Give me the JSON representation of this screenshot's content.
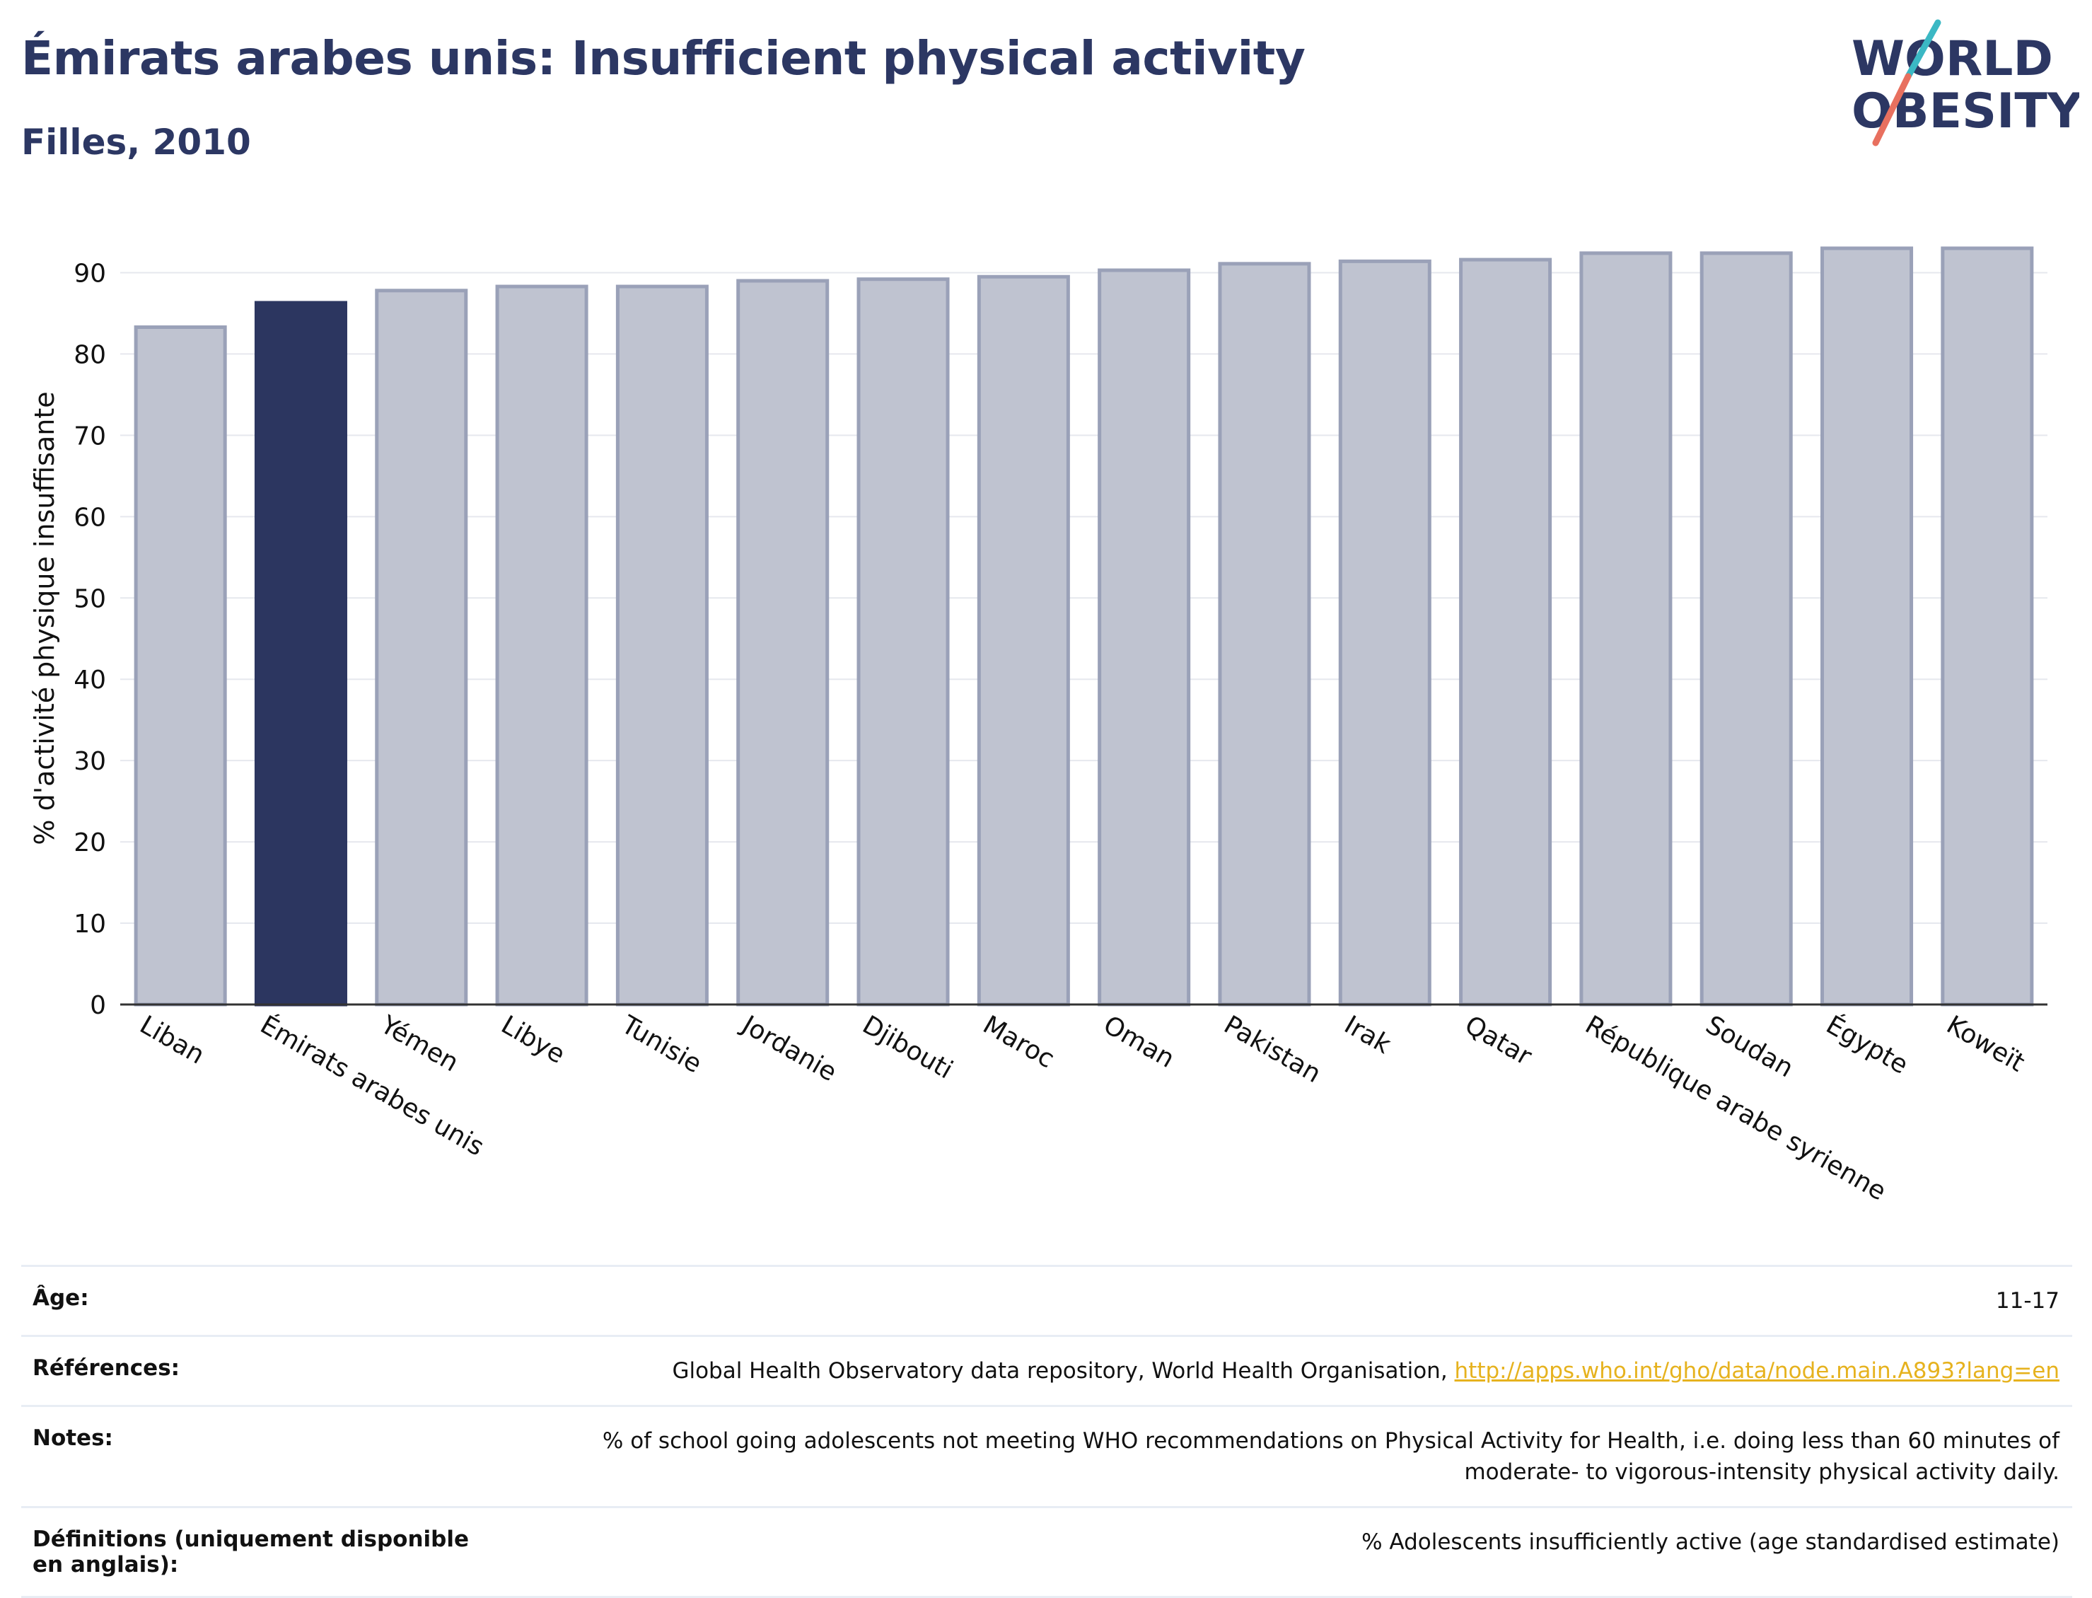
{
  "header": {
    "title": "Émirats arabes unis: Insufficient physical activity",
    "subtitle": "Filles, 2010"
  },
  "logo": {
    "line1": "WORLD",
    "line2": "OBESITY",
    "colors": {
      "text": "#2c3763",
      "accent_teal": "#3bb8c4",
      "accent_coral": "#e8705f"
    }
  },
  "colors": {
    "bar_default": "#bfc3d0",
    "bar_default_stroke": "#9aa1b8",
    "bar_highlight": "#2c3660",
    "axis": "#333333",
    "grid": "#e6e8ee"
  },
  "chart_data": {
    "type": "bar",
    "ylabel": "% d'activité physique insuffisante",
    "ylim": [
      0,
      95
    ],
    "yticks": [
      0,
      10,
      20,
      30,
      40,
      50,
      60,
      70,
      80,
      90
    ],
    "grid": true,
    "highlight": "Émirats arabes unis",
    "categories": [
      "Liban",
      "Émirats arabes unis",
      "Yémen",
      "Libye",
      "Tunisie",
      "Jordanie",
      "Djibouti",
      "Maroc",
      "Oman",
      "Pakistan",
      "Irak",
      "Qatar",
      "République arabe syrienne",
      "Soudan",
      "Égypte",
      "Koweït"
    ],
    "values": [
      83.3,
      86.3,
      87.8,
      88.3,
      88.3,
      89.0,
      89.2,
      89.5,
      90.3,
      91.1,
      91.4,
      91.6,
      92.4,
      92.4,
      93.0,
      93.0
    ]
  },
  "info": {
    "age_label": "Âge:",
    "age_value": "11-17",
    "refs_label": "Références:",
    "refs_text": "Global Health Observatory data repository, World Health Organisation, ",
    "refs_link": "http://apps.who.int/gho/data/node.main.A893?lang=en",
    "notes_label": "Notes:",
    "notes_line1": "% of school going adolescents not meeting WHO recommendations on Physical Activity for Health, i.e. doing less than 60 minutes of",
    "notes_line2": "moderate- to vigorous-intensity physical activity daily.",
    "defs_label": "Définitions (uniquement disponible en anglais):",
    "defs_value": "% Adolescents insufficiently active (age standardised estimate)"
  }
}
